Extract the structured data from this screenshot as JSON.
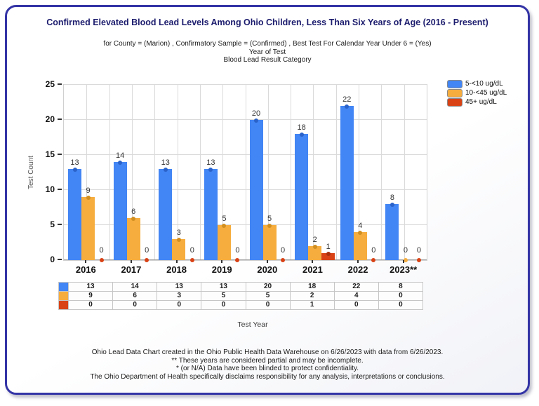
{
  "card": {
    "title": "Confirmed Elevated Blood Lead Levels Among Ohio Children, Less Than Six Years of Age (2016 - Present)",
    "subtitle_lines": [
      "for County = (Marion) , Confirmatory Sample = (Confirmed) , Best Test For Calendar Year Under 6 = (Yes)",
      "Year of Test",
      "Blood Lead Result Category"
    ],
    "footer_lines": [
      "Ohio Lead Data Chart created in the Ohio Public Health Data Warehouse on 6/26/2023 with data from 6/26/2023.",
      "** These years are considered partial and may be incomplete.",
      "* (or N/A) Data have been blinded to protect confidentiality.",
      "The Ohio Department of Health specifically disclaims responsibility for any analysis, interpretations or conclusions."
    ]
  },
  "chart_data": {
    "type": "bar",
    "title": "Confirmed Elevated Blood Lead Levels Among Ohio Children, Less Than Six Years of Age (2016 - Present)",
    "categories": [
      "2016",
      "2017",
      "2018",
      "2019",
      "2020",
      "2021",
      "2022",
      "2023**"
    ],
    "series": [
      {
        "name": "5-<10 ug/dL",
        "color": "#4285f4",
        "marker_color": "#2a62c9",
        "values": [
          13,
          14,
          13,
          13,
          20,
          18,
          22,
          8
        ]
      },
      {
        "name": "10-<45 ug/dL",
        "color": "#f6ad3e",
        "marker_color": "#d18f21",
        "values": [
          9,
          6,
          3,
          5,
          5,
          2,
          4,
          0
        ]
      },
      {
        "name": "45+ ug/dL",
        "color": "#d94215",
        "marker_color": "#a82f0d",
        "values": [
          0,
          0,
          0,
          0,
          0,
          1,
          0,
          0
        ]
      }
    ],
    "xlabel": "Test Year",
    "ylabel": "Test Count",
    "ylim": [
      0,
      25
    ],
    "ytick_step": 5,
    "grid": true,
    "legend_position": "top-right"
  }
}
